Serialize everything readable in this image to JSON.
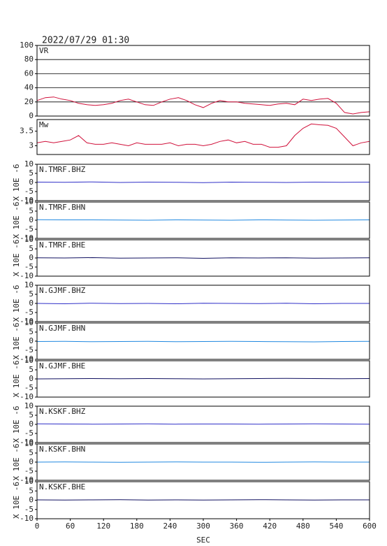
{
  "chart_data": [
    {
      "type": "line",
      "title": "2022/07/29 01:30",
      "label": "VR",
      "color": "#d0103a",
      "grid": true,
      "xlim": [
        0,
        600
      ],
      "ylim": [
        0,
        100
      ],
      "yticks": [
        0,
        20,
        40,
        60,
        80,
        100
      ],
      "x": [
        0,
        15,
        30,
        45,
        60,
        75,
        90,
        105,
        120,
        135,
        150,
        165,
        180,
        195,
        210,
        225,
        240,
        255,
        270,
        285,
        300,
        315,
        330,
        345,
        360,
        375,
        390,
        405,
        420,
        435,
        450,
        465,
        480,
        495,
        510,
        525,
        540,
        555,
        570,
        585,
        600
      ],
      "values": [
        22,
        26,
        27,
        24,
        22,
        18,
        16,
        15,
        16,
        18,
        22,
        24,
        20,
        16,
        15,
        20,
        24,
        26,
        22,
        16,
        12,
        18,
        22,
        20,
        20,
        18,
        17,
        16,
        15,
        17,
        18,
        16,
        24,
        22,
        24,
        25,
        18,
        5,
        3,
        5,
        6
      ]
    },
    {
      "type": "line",
      "label": "Mw",
      "color": "#d0103a",
      "grid": false,
      "xlim": [
        0,
        600
      ],
      "ylim": [
        2.7,
        3.9
      ],
      "yticks": [
        3.0,
        3.5
      ],
      "x": [
        0,
        15,
        30,
        45,
        60,
        75,
        90,
        105,
        120,
        135,
        150,
        165,
        180,
        195,
        210,
        225,
        240,
        255,
        270,
        285,
        300,
        315,
        330,
        345,
        360,
        375,
        390,
        405,
        420,
        435,
        450,
        465,
        480,
        495,
        510,
        525,
        540,
        555,
        570,
        585,
        600
      ],
      "values": [
        3.1,
        3.15,
        3.1,
        3.15,
        3.2,
        3.35,
        3.1,
        3.05,
        3.05,
        3.1,
        3.05,
        3.0,
        3.1,
        3.05,
        3.05,
        3.05,
        3.1,
        3.0,
        3.05,
        3.05,
        3.0,
        3.05,
        3.15,
        3.2,
        3.1,
        3.15,
        3.05,
        3.05,
        2.95,
        2.95,
        3.0,
        3.35,
        3.6,
        3.75,
        3.72,
        3.7,
        3.6,
        3.3,
        3.0,
        3.1,
        3.15
      ]
    },
    {
      "type": "line",
      "label": "N.TMRF.BHZ",
      "ylabel": "X 10E -6",
      "color": "#3030c8",
      "xlim": [
        0,
        600
      ],
      "ylim": [
        -10,
        10
      ],
      "yticks": [
        -10,
        -5,
        0,
        5,
        10
      ],
      "x": [
        0,
        50,
        100,
        150,
        200,
        250,
        300,
        350,
        400,
        450,
        500,
        550,
        600
      ],
      "values": [
        0.2,
        0.1,
        0.3,
        0.0,
        0.2,
        0.1,
        -0.1,
        0.2,
        0.1,
        0.0,
        0.2,
        0.1,
        0.2
      ]
    },
    {
      "type": "line",
      "label": "N.TMRF.BHN",
      "ylabel": "X 10E -6",
      "color": "#2088e0",
      "xlim": [
        0,
        600
      ],
      "ylim": [
        -10,
        10
      ],
      "yticks": [
        -10,
        -5,
        0,
        5,
        10
      ],
      "x": [
        0,
        50,
        100,
        150,
        200,
        250,
        300,
        350,
        400,
        450,
        500,
        550,
        600
      ],
      "values": [
        0.3,
        0.2,
        0.2,
        0.1,
        0.0,
        0.2,
        0.1,
        0.0,
        0.2,
        0.1,
        0.0,
        0.1,
        0.2
      ]
    },
    {
      "type": "line",
      "label": "N.TMRF.BHE",
      "ylabel": "X 10E -6",
      "color": "#101060",
      "xlim": [
        0,
        600
      ],
      "ylim": [
        -10,
        10
      ],
      "yticks": [
        -10,
        -5,
        0,
        5,
        10
      ],
      "x": [
        0,
        50,
        100,
        150,
        200,
        250,
        300,
        350,
        400,
        450,
        500,
        550,
        600
      ],
      "values": [
        0.1,
        0.0,
        0.2,
        -0.1,
        0.0,
        0.1,
        -0.2,
        0.1,
        0.0,
        0.1,
        -0.1,
        0.0,
        0.1
      ]
    },
    {
      "type": "line",
      "label": "N.GJMF.BHZ",
      "ylabel": "X 10E -6",
      "color": "#3030c8",
      "xlim": [
        0,
        600
      ],
      "ylim": [
        -10,
        10
      ],
      "yticks": [
        -10,
        -5,
        0,
        5,
        10
      ],
      "x": [
        0,
        50,
        100,
        150,
        200,
        250,
        300,
        350,
        400,
        450,
        500,
        550,
        600
      ],
      "values": [
        0.0,
        -0.2,
        0.1,
        -0.1,
        0.0,
        -0.2,
        0.1,
        0.0,
        -0.1,
        0.1,
        -0.2,
        0.0,
        0.0
      ]
    },
    {
      "type": "line",
      "label": "N.GJMF.BHN",
      "ylabel": "X 10E -6",
      "color": "#2088e0",
      "xlim": [
        0,
        600
      ],
      "ylim": [
        -10,
        10
      ],
      "yticks": [
        -10,
        -5,
        0,
        5,
        10
      ],
      "x": [
        0,
        50,
        100,
        150,
        200,
        250,
        300,
        350,
        400,
        450,
        500,
        550,
        600
      ],
      "values": [
        -0.2,
        -0.1,
        -0.3,
        -0.2,
        -0.1,
        -0.3,
        -0.2,
        -0.1,
        -0.2,
        -0.3,
        -0.4,
        -0.2,
        -0.1
      ]
    },
    {
      "type": "line",
      "label": "N.GJMF.BHE",
      "ylabel": "X 10E -6",
      "color": "#101060",
      "xlim": [
        0,
        600
      ],
      "ylim": [
        -10,
        10
      ],
      "yticks": [
        -10,
        -5,
        0,
        5,
        10
      ],
      "x": [
        0,
        50,
        100,
        150,
        200,
        250,
        300,
        350,
        400,
        450,
        500,
        550,
        600
      ],
      "values": [
        0.0,
        0.1,
        0.2,
        0.1,
        0.2,
        0.1,
        0.0,
        0.1,
        0.2,
        0.3,
        0.2,
        0.1,
        0.2
      ]
    },
    {
      "type": "line",
      "label": "N.KSKF.BHZ",
      "ylabel": "X 10E -6",
      "color": "#3030c8",
      "xlim": [
        0,
        600
      ],
      "ylim": [
        -10,
        10
      ],
      "yticks": [
        -10,
        -5,
        0,
        5,
        10
      ],
      "x": [
        0,
        50,
        100,
        150,
        200,
        250,
        300,
        350,
        400,
        450,
        500,
        550,
        600
      ],
      "values": [
        0.3,
        0.2,
        0.1,
        0.2,
        0.3,
        0.1,
        0.2,
        0.2,
        0.1,
        0.2,
        0.3,
        0.2,
        0.1
      ]
    },
    {
      "type": "line",
      "label": "N.KSKF.BHN",
      "ylabel": "X 10E -6",
      "color": "#2088e0",
      "xlim": [
        0,
        600
      ],
      "ylim": [
        -10,
        10
      ],
      "yticks": [
        -10,
        -5,
        0,
        5,
        10
      ],
      "x": [
        0,
        50,
        100,
        150,
        200,
        250,
        300,
        350,
        400,
        450,
        500,
        550,
        600
      ],
      "values": [
        0.0,
        0.1,
        0.0,
        -0.1,
        0.0,
        0.1,
        0.0,
        0.0,
        -0.1,
        0.0,
        0.1,
        0.0,
        0.0
      ]
    },
    {
      "type": "line",
      "label": "N.KSKF.BHE",
      "ylabel": "X 10E -6",
      "color": "#101060",
      "xlim": [
        0,
        600
      ],
      "ylim": [
        -10,
        10
      ],
      "yticks": [
        -10,
        -5,
        0,
        5,
        10
      ],
      "x": [
        0,
        50,
        100,
        150,
        200,
        250,
        300,
        350,
        400,
        450,
        500,
        550,
        600
      ],
      "values": [
        0.2,
        0.1,
        0.2,
        0.3,
        0.1,
        0.2,
        0.1,
        0.2,
        0.3,
        0.2,
        0.1,
        0.2,
        0.2
      ],
      "xticks": [
        0,
        60,
        120,
        180,
        240,
        300,
        360,
        420,
        480,
        540,
        600
      ],
      "xlabel": "SEC"
    }
  ]
}
